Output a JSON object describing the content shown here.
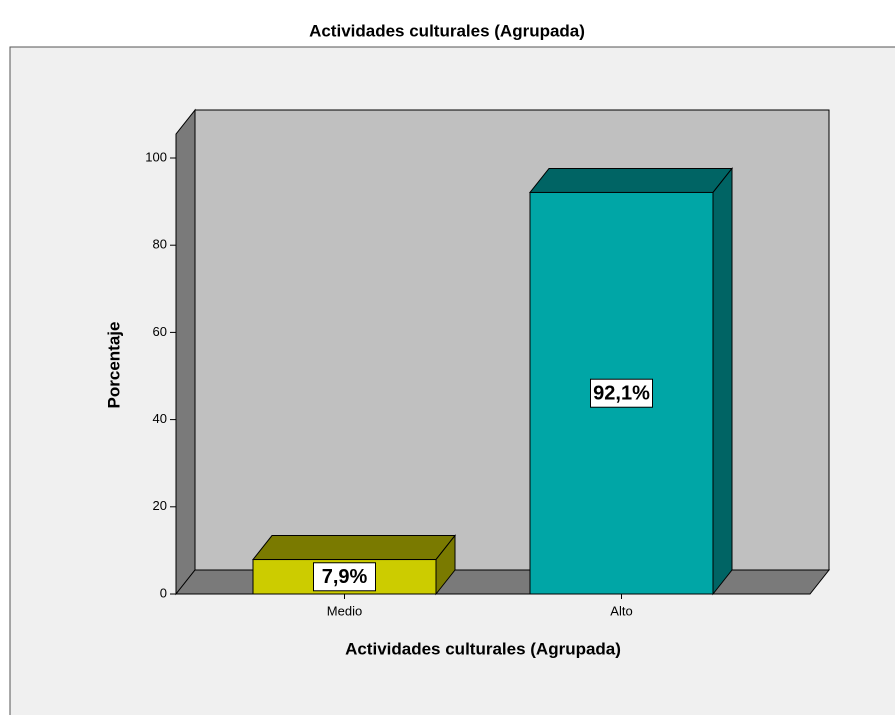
{
  "chart_data": {
    "type": "bar3d",
    "title": "Actividades culturales (Agrupada)",
    "x_label": "Actividades culturales (Agrupada)",
    "y_label": "Porcentaje",
    "categories": [
      "Medio",
      "Alto"
    ],
    "values": [
      7.9,
      92.1
    ],
    "value_labels": [
      "7,9%",
      "92,1%"
    ],
    "colors": [
      "#cccc00",
      "#00a6a6"
    ],
    "ylim": [
      0,
      105.5
    ],
    "yticks": [
      0,
      20,
      40,
      60,
      80,
      100
    ]
  }
}
